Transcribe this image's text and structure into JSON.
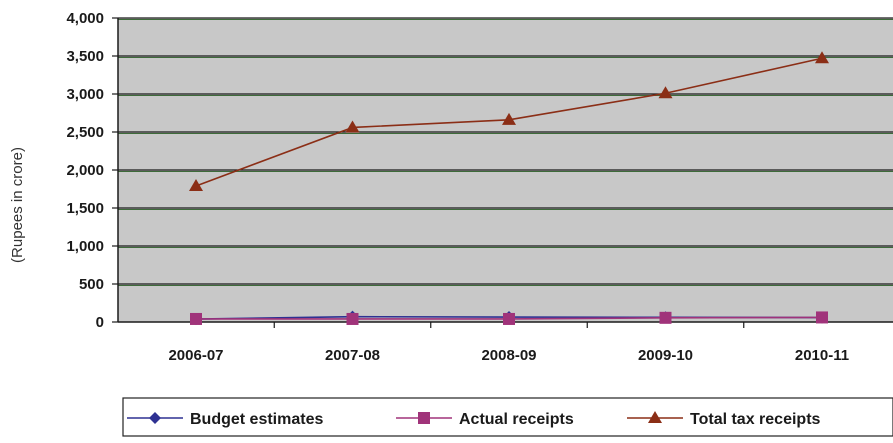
{
  "chart_data": {
    "type": "line",
    "ylabel": "(Rupees in crore)",
    "categories": [
      "2006-07",
      "2007-08",
      "2008-09",
      "2009-10",
      "2010-11"
    ],
    "ylim": [
      0,
      4000
    ],
    "yticks": [
      "0",
      "500",
      "1,000",
      "1,500",
      "2,000",
      "2,500",
      "3,000",
      "3,500",
      "4,000"
    ],
    "grid": true,
    "legend_position": "bottom",
    "series": [
      {
        "name": "Budget estimates",
        "values": [
          38,
          70,
          65,
          62,
          58
        ],
        "color": "#2e3192",
        "marker": "diamond"
      },
      {
        "name": "Actual receipts",
        "values": [
          40,
          40,
          40,
          55,
          60
        ],
        "color": "#a0337a",
        "marker": "square"
      },
      {
        "name": "Total tax receipts",
        "values": [
          1790,
          2560,
          2660,
          3010,
          3470
        ],
        "color": "#8b2e16",
        "marker": "triangle"
      }
    ]
  }
}
